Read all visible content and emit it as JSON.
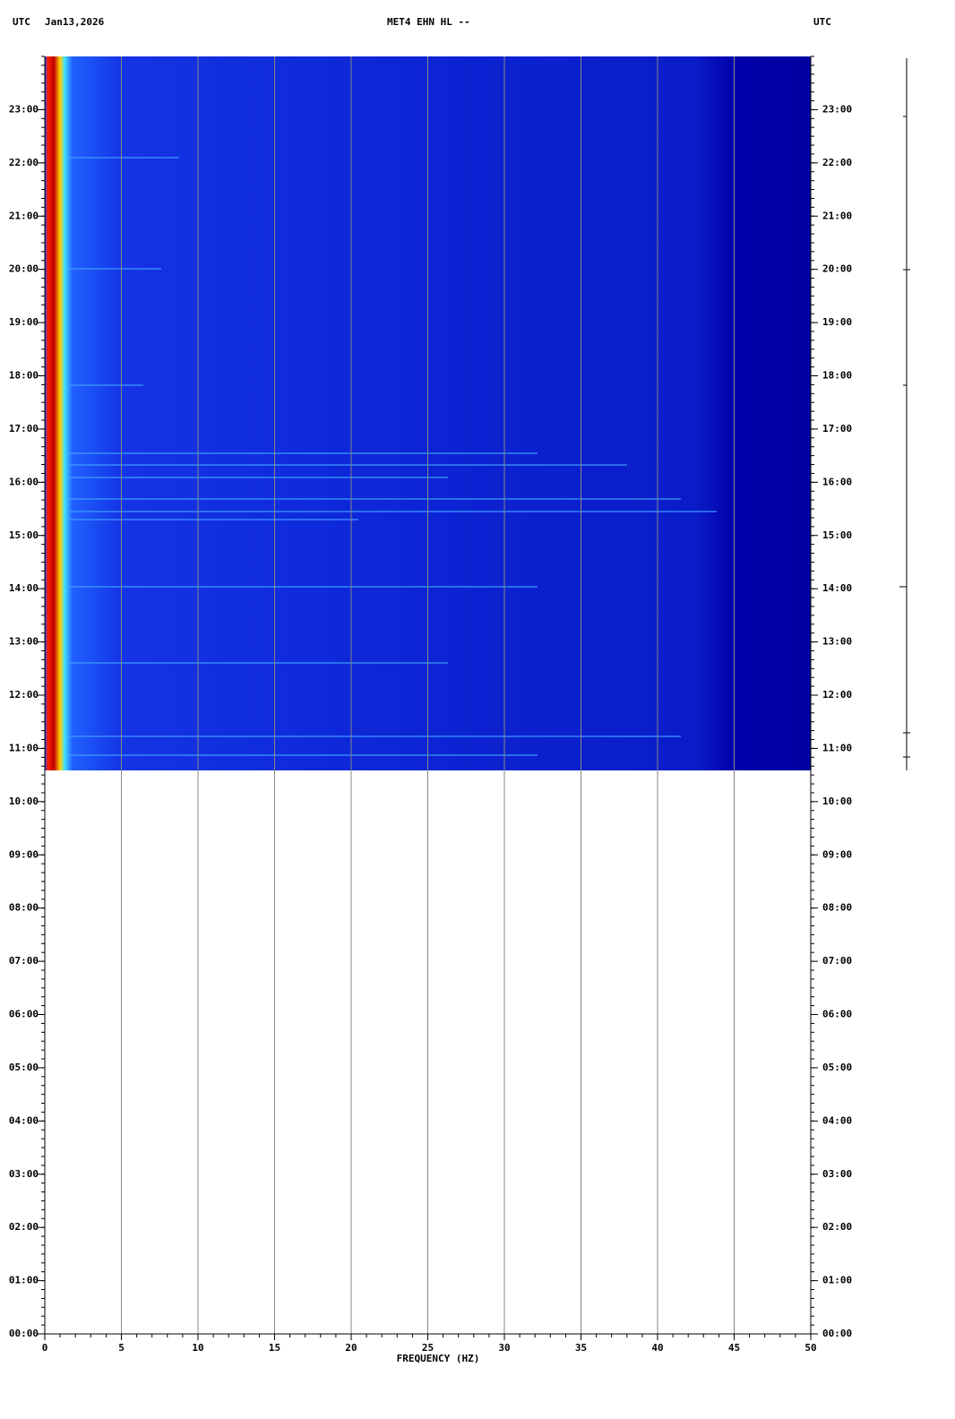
{
  "chart_data": {
    "type": "spectrogram",
    "title": "MET4 EHN HL --",
    "date": "Jan13,2026",
    "timezone_label": "UTC",
    "xlabel": "FREQUENCY (HZ)",
    "xlim": [
      0,
      50
    ],
    "xticks": [
      0,
      5,
      10,
      15,
      20,
      25,
      30,
      35,
      40,
      45,
      50
    ],
    "ylim": [
      0,
      24
    ],
    "yticks": [
      {
        "value": 0,
        "label": "00:00"
      },
      {
        "value": 1,
        "label": "01:00"
      },
      {
        "value": 2,
        "label": "02:00"
      },
      {
        "value": 3,
        "label": "03:00"
      },
      {
        "value": 4,
        "label": "04:00"
      },
      {
        "value": 5,
        "label": "05:00"
      },
      {
        "value": 6,
        "label": "06:00"
      },
      {
        "value": 7,
        "label": "07:00"
      },
      {
        "value": 8,
        "label": "08:00"
      },
      {
        "value": 9,
        "label": "09:00"
      },
      {
        "value": 10,
        "label": "10:00"
      },
      {
        "value": 11,
        "label": "11:00"
      },
      {
        "value": 12,
        "label": "12:00"
      },
      {
        "value": 13,
        "label": "13:00"
      },
      {
        "value": 14,
        "label": "14:00"
      },
      {
        "value": 15,
        "label": "15:00"
      },
      {
        "value": 16,
        "label": "16:00"
      },
      {
        "value": 17,
        "label": "17:00"
      },
      {
        "value": 18,
        "label": "18:00"
      },
      {
        "value": 19,
        "label": "19:00"
      },
      {
        "value": 20,
        "label": "20:00"
      },
      {
        "value": 21,
        "label": "21:00"
      },
      {
        "value": 22,
        "label": "22:00"
      },
      {
        "value": 23,
        "label": "23:00"
      }
    ],
    "grid": true,
    "grid_color": "#888888"
  }
}
